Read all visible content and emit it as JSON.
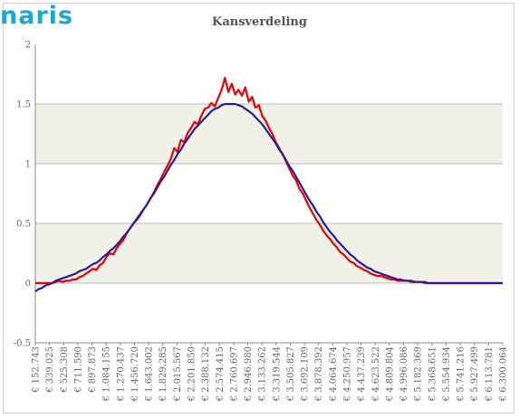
{
  "brand": {
    "logo_text": "naris"
  },
  "chart_data": {
    "type": "line",
    "title": "Kansverdeling",
    "xlabel": "",
    "ylabel": "",
    "ylim": [
      -0.5,
      2
    ],
    "yticks": [
      "2",
      "1.5",
      "1",
      "0.5",
      "0",
      "-0.5"
    ],
    "grid": "horizontal bands",
    "x_tick_labels": [
      "€ 152.743",
      "€ 339.025",
      "€ 525.308",
      "€ 711.590",
      "€ 897.873",
      "€ 1.084.155",
      "€ 1.270.437",
      "€ 1.456.720",
      "€ 1.643.002",
      "€ 1.829.285",
      "€ 2.015.567",
      "€ 2.201.850",
      "€ 2.388.132",
      "€ 2.574.415",
      "€ 2.760.697",
      "€ 2.946.980",
      "€ 3.133.262",
      "€ 3.319.544",
      "€ 3.505.827",
      "€ 3.692.109",
      "€ 3.878.392",
      "€ 4.064.674",
      "€ 4.250.957",
      "€ 4.437.239",
      "€ 4.623.522",
      "€ 4.809.804",
      "€ 4.996.086",
      "€ 5.182.369",
      "€ 5.368.651",
      "€ 5.554.934",
      "€ 5.741.216",
      "€ 5.927.499",
      "€ 6.113.781",
      "€ 6.300.064"
    ],
    "colors": {
      "empirical": "#ee0000",
      "normal": "#2a1a9a",
      "band": "#f1f1e8",
      "gridline": "#bbbbbb",
      "axis": "#888888"
    },
    "series": [
      {
        "key": "empirical",
        "values": [
          0.0,
          0.0,
          0.0,
          0.0,
          0.0,
          0.0,
          0.01,
          0.02,
          0.01,
          0.02,
          0.02,
          0.03,
          0.03,
          0.05,
          0.06,
          0.08,
          0.1,
          0.12,
          0.11,
          0.15,
          0.17,
          0.22,
          0.25,
          0.24,
          0.29,
          0.33,
          0.36,
          0.42,
          0.46,
          0.5,
          0.53,
          0.57,
          0.62,
          0.66,
          0.71,
          0.76,
          0.82,
          0.87,
          0.93,
          0.98,
          1.04,
          1.13,
          1.1,
          1.2,
          1.18,
          1.26,
          1.3,
          1.35,
          1.33,
          1.4,
          1.46,
          1.47,
          1.51,
          1.48,
          1.55,
          1.62,
          1.72,
          1.6,
          1.67,
          1.58,
          1.62,
          1.57,
          1.64,
          1.52,
          1.56,
          1.47,
          1.49,
          1.4,
          1.36,
          1.3,
          1.25,
          1.18,
          1.13,
          1.08,
          1.02,
          0.96,
          0.9,
          0.86,
          0.79,
          0.75,
          0.69,
          0.63,
          0.58,
          0.53,
          0.49,
          0.44,
          0.4,
          0.37,
          0.33,
          0.3,
          0.26,
          0.24,
          0.21,
          0.18,
          0.17,
          0.14,
          0.13,
          0.11,
          0.1,
          0.08,
          0.07,
          0.06,
          0.06,
          0.05,
          0.04,
          0.03,
          0.03,
          0.02,
          0.02,
          0.02,
          0.02,
          0.01,
          0.01,
          0.01,
          0.01,
          0.0,
          0.0,
          0.0,
          0.0,
          0.0,
          0.0,
          0.0,
          0.0,
          0.0,
          0.0,
          0.0,
          0.0,
          0.0,
          0.0,
          0.0,
          0.0,
          0.0,
          0.0,
          0.0,
          0.0,
          0.0,
          0.0,
          0.0,
          0.0
        ]
      },
      {
        "key": "normal",
        "values": [
          -0.07,
          -0.05,
          -0.04,
          -0.02,
          -0.01,
          0.0,
          0.02,
          0.03,
          0.04,
          0.05,
          0.06,
          0.07,
          0.08,
          0.1,
          0.11,
          0.12,
          0.14,
          0.16,
          0.17,
          0.19,
          0.22,
          0.24,
          0.27,
          0.29,
          0.32,
          0.35,
          0.39,
          0.42,
          0.46,
          0.5,
          0.54,
          0.58,
          0.62,
          0.66,
          0.71,
          0.75,
          0.8,
          0.85,
          0.89,
          0.94,
          0.99,
          1.03,
          1.08,
          1.12,
          1.17,
          1.21,
          1.25,
          1.29,
          1.32,
          1.35,
          1.38,
          1.41,
          1.44,
          1.46,
          1.47,
          1.49,
          1.5,
          1.5,
          1.5,
          1.5,
          1.49,
          1.48,
          1.46,
          1.44,
          1.42,
          1.39,
          1.36,
          1.33,
          1.29,
          1.25,
          1.21,
          1.17,
          1.12,
          1.08,
          1.03,
          0.98,
          0.94,
          0.89,
          0.84,
          0.79,
          0.74,
          0.69,
          0.65,
          0.6,
          0.56,
          0.51,
          0.47,
          0.43,
          0.4,
          0.36,
          0.33,
          0.3,
          0.27,
          0.24,
          0.22,
          0.19,
          0.17,
          0.15,
          0.13,
          0.12,
          0.1,
          0.09,
          0.08,
          0.07,
          0.06,
          0.05,
          0.04,
          0.03,
          0.03,
          0.02,
          0.02,
          0.02,
          0.01,
          0.01,
          0.01,
          0.01,
          0.0,
          0.0,
          0.0,
          0.0,
          0.0,
          0.0,
          0.0,
          0.0,
          0.0,
          0.0,
          0.0,
          0.0,
          0.0,
          0.0,
          0.0,
          0.0,
          0.0,
          0.0,
          0.0,
          0.0,
          0.0,
          0.0,
          0.0
        ]
      }
    ]
  }
}
